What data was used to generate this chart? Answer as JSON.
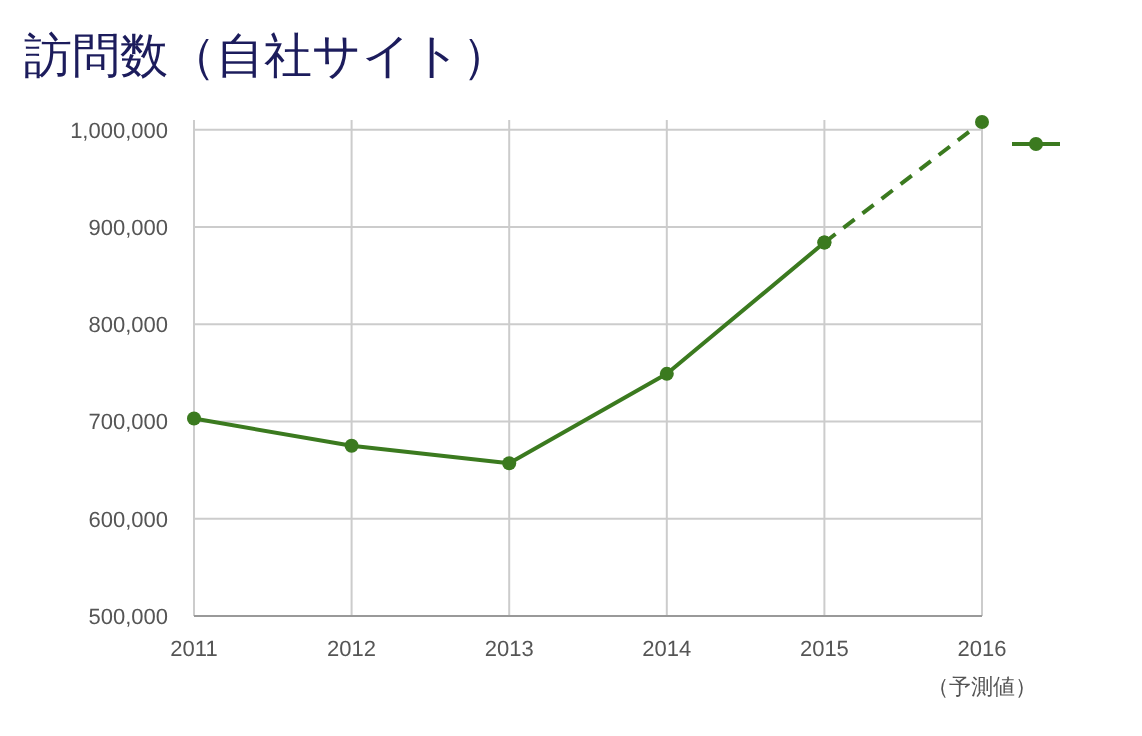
{
  "chart_data": {
    "type": "line",
    "title": "訪問数（自社サイト）",
    "x": [
      2011,
      2012,
      2013,
      2014,
      2015
    ],
    "series": [
      {
        "color": "#3b7a1f",
        "values": [
          703000,
          675000,
          657000,
          749000,
          884000
        ],
        "line_style": "solid"
      },
      {
        "color": "#3b7a1f",
        "x": [
          2015,
          2016
        ],
        "values": [
          884000,
          1008000
        ],
        "line_style": "dashed"
      }
    ],
    "xlim": [
      2011,
      2016
    ],
    "xticks": [
      2011,
      2012,
      2013,
      2014,
      2015,
      2016
    ],
    "ylim": [
      500000,
      1010000
    ],
    "yticks": [
      {
        "value": 500000,
        "label": "500,000"
      },
      {
        "value": 600000,
        "label": "600,000"
      },
      {
        "value": 700000,
        "label": "700,000"
      },
      {
        "value": 800000,
        "label": "800,000"
      },
      {
        "value": 900000,
        "label": "900,000"
      },
      {
        "value": 1000000,
        "label": "1,000,000"
      }
    ],
    "grid": true,
    "marker": "circle",
    "annotations": [
      "（予測値）"
    ]
  }
}
